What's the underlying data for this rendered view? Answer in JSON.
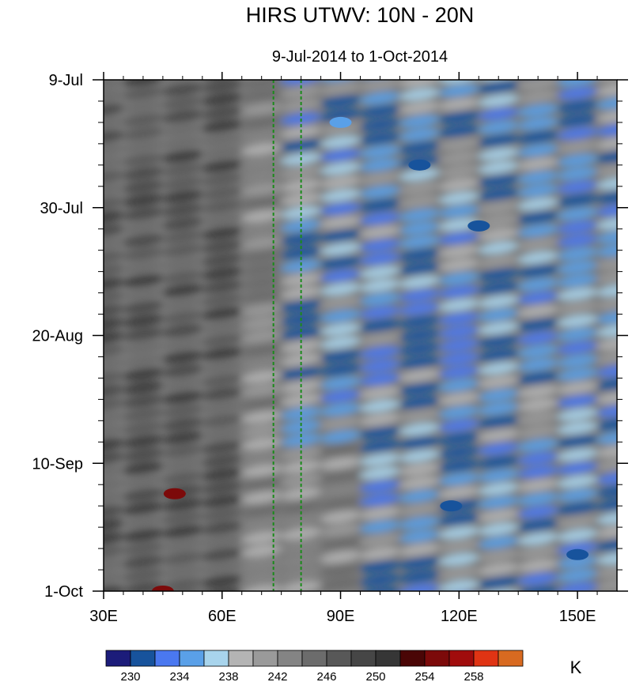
{
  "chart_data": {
    "type": "heatmap",
    "title": "HIRS UTWV: 10N - 20N",
    "subtitle": "9-Jul-2014 to 1-Oct-2014",
    "xlabel": "",
    "ylabel": "",
    "x_ticks": [
      {
        "value": 30,
        "label": "30E"
      },
      {
        "value": 60,
        "label": "60E"
      },
      {
        "value": 90,
        "label": "90E"
      },
      {
        "value": 120,
        "label": "120E"
      },
      {
        "value": 150,
        "label": "150E"
      }
    ],
    "xlim": [
      30,
      160
    ],
    "y_ticks": [
      {
        "day": 0,
        "label": "9-Jul"
      },
      {
        "day": 21,
        "label": "30-Jul"
      },
      {
        "day": 42,
        "label": "20-Aug"
      },
      {
        "day": 63,
        "label": "10-Sep"
      },
      {
        "day": 84,
        "label": "1-Oct"
      }
    ],
    "ylim_dates": [
      "9-Jul-2014",
      "1-Oct-2014"
    ],
    "reference_lines_lon": [
      73,
      80
    ],
    "reference_line_color": "#1a8a1a",
    "colorbar": {
      "unit": "K",
      "levels": [
        230,
        232,
        234,
        236,
        238,
        240,
        242,
        244,
        246,
        248,
        250,
        252,
        254,
        256,
        258
      ],
      "labeled_levels": [
        "230",
        "234",
        "238",
        "242",
        "246",
        "250",
        "254",
        "258"
      ],
      "colors": [
        "#1c1c7a",
        "#17539c",
        "#4a78f0",
        "#5aa0e8",
        "#a8d4ec",
        "#b4b4b4",
        "#9a9a9a",
        "#848484",
        "#6c6c6c",
        "#585858",
        "#464646",
        "#363636",
        "#4a0606",
        "#7c0a0a",
        "#a00c0c",
        "#e03414",
        "#d86a20"
      ]
    },
    "features": [
      {
        "lon": 90,
        "day": 7,
        "value": 234
      },
      {
        "lon": 110,
        "day": 14,
        "value": 231
      },
      {
        "lon": 125,
        "day": 24,
        "value": 231
      },
      {
        "lon": 48,
        "day": 68,
        "value": 255
      },
      {
        "lon": 118,
        "day": 70,
        "value": 231
      },
      {
        "lon": 150,
        "day": 78,
        "value": 231
      },
      {
        "lon": 45,
        "day": 84,
        "value": 255
      }
    ]
  }
}
